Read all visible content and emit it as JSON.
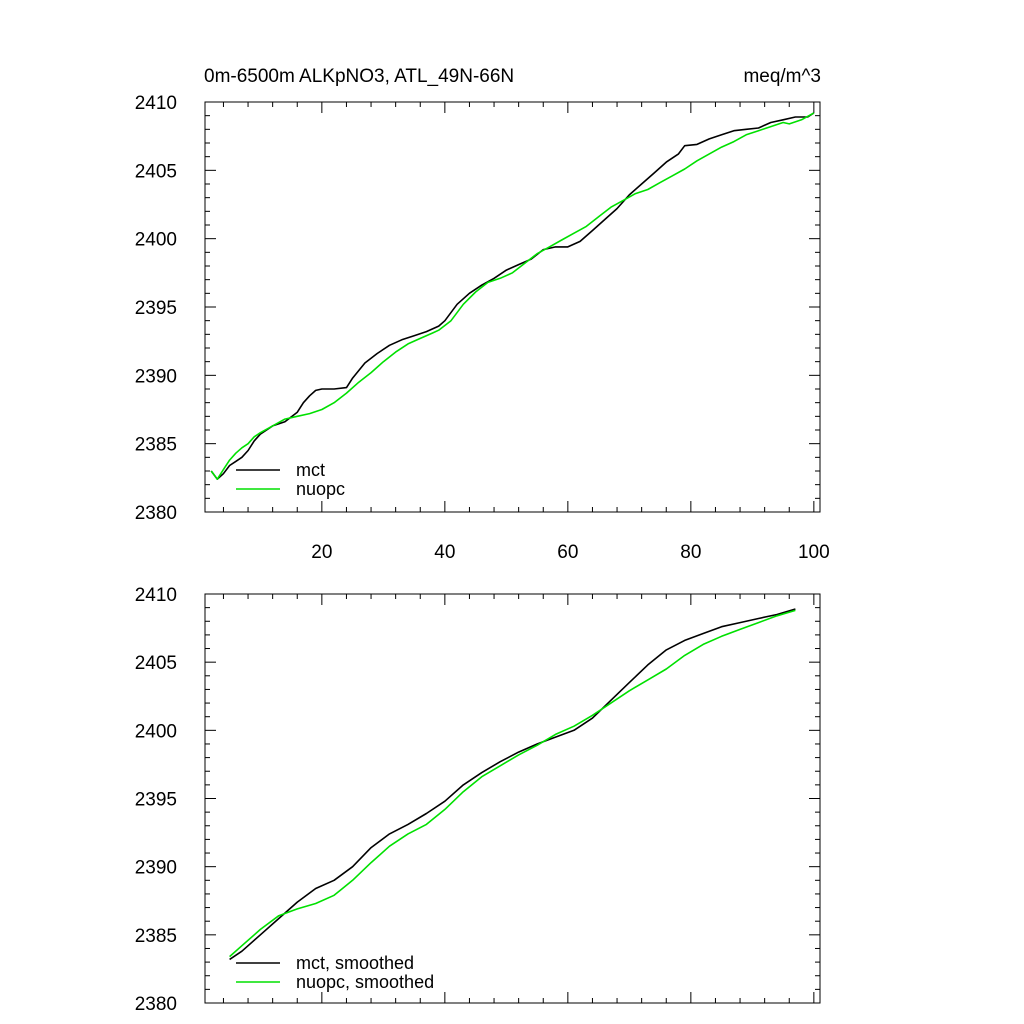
{
  "figure": {
    "title_left": "0m-6500m ALKpNO3, ATL_49N-66N",
    "title_right": "meq/m^3"
  },
  "chart_data": [
    {
      "type": "line",
      "xlim": [
        1,
        101
      ],
      "ylim": [
        2380,
        2410
      ],
      "yticks": [
        2380,
        2385,
        2390,
        2395,
        2400,
        2405,
        2410
      ],
      "xticks": [
        20,
        40,
        60,
        80,
        100
      ],
      "show_xtick_labels": true,
      "series": [
        {
          "name": "mct",
          "color": "#000000",
          "x": [
            2,
            3,
            4,
            5,
            6,
            7,
            8,
            9,
            10,
            12,
            14,
            16,
            17,
            18,
            19,
            20,
            22,
            24,
            25,
            27,
            29,
            31,
            33,
            35,
            37,
            39,
            40,
            42,
            44,
            46,
            48,
            50,
            52,
            54,
            56,
            58,
            60,
            62,
            64,
            66,
            68,
            70,
            72,
            74,
            76,
            78,
            79,
            81,
            83,
            85,
            87,
            89,
            91,
            93,
            95,
            97,
            99,
            100
          ],
          "values": [
            2383.0,
            2382.4,
            2382.8,
            2383.4,
            2383.7,
            2384.0,
            2384.5,
            2385.2,
            2385.7,
            2386.3,
            2386.6,
            2387.3,
            2388.0,
            2388.5,
            2388.9,
            2389.0,
            2389.0,
            2389.1,
            2389.8,
            2390.9,
            2391.6,
            2392.2,
            2392.6,
            2392.9,
            2393.2,
            2393.6,
            2394.0,
            2395.2,
            2396.0,
            2396.6,
            2397.1,
            2397.7,
            2398.1,
            2398.5,
            2399.2,
            2399.4,
            2399.4,
            2399.8,
            2400.6,
            2401.4,
            2402.2,
            2403.2,
            2404.0,
            2404.8,
            2405.6,
            2406.2,
            2406.8,
            2406.9,
            2407.3,
            2407.6,
            2407.9,
            2408.0,
            2408.1,
            2408.5,
            2408.7,
            2408.9,
            2408.9,
            2409.2
          ]
        },
        {
          "name": "nuopc",
          "color": "#00e000",
          "x": [
            2,
            3,
            4,
            5,
            6,
            7,
            8,
            9,
            10,
            12,
            14,
            16,
            18,
            20,
            22,
            24,
            26,
            28,
            30,
            32,
            34,
            36,
            38,
            39,
            41,
            43,
            45,
            47,
            49,
            51,
            53,
            55,
            57,
            59,
            61,
            63,
            65,
            67,
            69,
            71,
            73,
            75,
            77,
            79,
            81,
            83,
            85,
            87,
            89,
            91,
            93,
            95,
            96,
            98,
            100
          ],
          "values": [
            2383.0,
            2382.4,
            2383.1,
            2383.8,
            2384.3,
            2384.7,
            2385.0,
            2385.5,
            2385.8,
            2386.3,
            2386.8,
            2387.0,
            2387.2,
            2387.5,
            2388.0,
            2388.7,
            2389.5,
            2390.2,
            2391.0,
            2391.7,
            2392.3,
            2392.7,
            2393.1,
            2393.3,
            2394.0,
            2395.2,
            2396.1,
            2396.8,
            2397.1,
            2397.5,
            2398.2,
            2398.9,
            2399.4,
            2399.9,
            2400.4,
            2400.9,
            2401.6,
            2402.3,
            2402.8,
            2403.3,
            2403.6,
            2404.1,
            2404.6,
            2405.1,
            2405.7,
            2406.2,
            2406.7,
            2407.1,
            2407.6,
            2407.9,
            2408.2,
            2408.5,
            2408.4,
            2408.7,
            2409.2
          ]
        }
      ]
    },
    {
      "type": "line",
      "xlim": [
        1,
        101
      ],
      "ylim": [
        2380,
        2410
      ],
      "yticks": [
        2380,
        2385,
        2390,
        2395,
        2400,
        2405,
        2410
      ],
      "xticks": [
        20,
        40,
        60,
        80,
        100
      ],
      "show_xtick_labels": false,
      "series": [
        {
          "name": "mct, smoothed",
          "color": "#000000",
          "x": [
            5,
            7,
            10,
            13,
            16,
            19,
            22,
            25,
            28,
            31,
            34,
            37,
            40,
            43,
            46,
            49,
            52,
            55,
            58,
            61,
            64,
            67,
            70,
            73,
            76,
            79,
            82,
            85,
            88,
            91,
            94,
            97
          ],
          "values": [
            2383.2,
            2383.8,
            2385.0,
            2386.2,
            2387.4,
            2388.4,
            2389.0,
            2390.0,
            2391.4,
            2392.4,
            2393.1,
            2393.9,
            2394.8,
            2396.0,
            2396.9,
            2397.7,
            2398.4,
            2399.0,
            2399.5,
            2400.0,
            2400.9,
            2402.2,
            2403.5,
            2404.8,
            2405.9,
            2406.6,
            2407.1,
            2407.6,
            2407.9,
            2408.2,
            2408.5,
            2408.9
          ]
        },
        {
          "name": "nuopc, smoothed",
          "color": "#00e000",
          "x": [
            5,
            7,
            10,
            13,
            16,
            19,
            22,
            25,
            28,
            31,
            34,
            37,
            40,
            43,
            46,
            49,
            52,
            55,
            58,
            61,
            64,
            67,
            70,
            73,
            76,
            79,
            82,
            85,
            88,
            91,
            94,
            97
          ],
          "values": [
            2383.4,
            2384.2,
            2385.4,
            2386.4,
            2386.9,
            2387.3,
            2387.9,
            2389.0,
            2390.3,
            2391.5,
            2392.4,
            2393.1,
            2394.2,
            2395.5,
            2396.6,
            2397.4,
            2398.2,
            2398.9,
            2399.7,
            2400.3,
            2401.1,
            2402.0,
            2402.9,
            2403.7,
            2404.5,
            2405.5,
            2406.3,
            2406.9,
            2407.4,
            2407.9,
            2408.4,
            2408.8
          ]
        }
      ]
    }
  ]
}
